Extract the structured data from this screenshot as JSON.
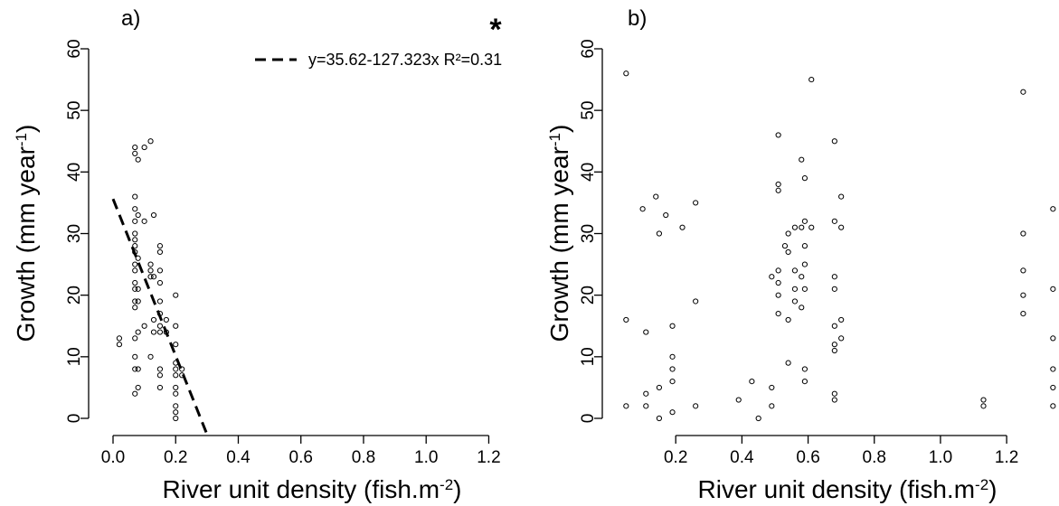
{
  "chart_data": [
    {
      "type": "scatter",
      "panel_label": "a)",
      "significance": "*",
      "xlabel": "River unit density (fish.m",
      "xlabel_sup": "-2",
      "xlabel_end": ")",
      "ylabel": "Growth (mm year",
      "ylabel_sup": "-1",
      "ylabel_end": ")",
      "xlim": [
        0,
        1.32
      ],
      "ylim": [
        -2,
        62
      ],
      "xticks": [
        0.0,
        0.2,
        0.4,
        0.6,
        0.8,
        1.0,
        1.2
      ],
      "xtick_labels": [
        "0.0",
        "0.2",
        "0.4",
        "0.6",
        "0.8",
        "1.0",
        "1.2"
      ],
      "yticks": [
        0,
        10,
        20,
        30,
        40,
        50,
        60
      ],
      "ytick_labels": [
        "0",
        "10",
        "20",
        "30",
        "40",
        "50",
        "60"
      ],
      "legend": {
        "label": "y=35.62-127.323x R²=0.31",
        "placement": "top-right"
      },
      "fit": {
        "intercept": 35.62,
        "slope": -127.323,
        "x_range": [
          0.0,
          0.3
        ]
      },
      "points": [
        [
          0.02,
          13
        ],
        [
          0.02,
          12
        ],
        [
          0.07,
          44
        ],
        [
          0.07,
          43
        ],
        [
          0.07,
          36
        ],
        [
          0.07,
          34
        ],
        [
          0.07,
          32
        ],
        [
          0.07,
          30
        ],
        [
          0.07,
          29
        ],
        [
          0.07,
          28
        ],
        [
          0.07,
          27
        ],
        [
          0.07,
          25
        ],
        [
          0.07,
          24
        ],
        [
          0.07,
          22
        ],
        [
          0.07,
          21
        ],
        [
          0.07,
          19
        ],
        [
          0.07,
          18
        ],
        [
          0.07,
          13
        ],
        [
          0.07,
          10
        ],
        [
          0.07,
          8
        ],
        [
          0.07,
          4
        ],
        [
          0.08,
          42
        ],
        [
          0.08,
          33
        ],
        [
          0.08,
          26
        ],
        [
          0.08,
          21
        ],
        [
          0.08,
          19
        ],
        [
          0.08,
          14
        ],
        [
          0.08,
          8
        ],
        [
          0.08,
          5
        ],
        [
          0.1,
          44
        ],
        [
          0.1,
          32
        ],
        [
          0.1,
          15
        ],
        [
          0.12,
          45
        ],
        [
          0.12,
          25
        ],
        [
          0.12,
          24
        ],
        [
          0.12,
          23
        ],
        [
          0.12,
          10
        ],
        [
          0.13,
          33
        ],
        [
          0.13,
          23
        ],
        [
          0.13,
          16
        ],
        [
          0.13,
          14
        ],
        [
          0.15,
          28
        ],
        [
          0.15,
          27
        ],
        [
          0.15,
          24
        ],
        [
          0.15,
          22
        ],
        [
          0.15,
          19
        ],
        [
          0.15,
          17
        ],
        [
          0.15,
          15
        ],
        [
          0.15,
          14
        ],
        [
          0.15,
          8
        ],
        [
          0.15,
          7
        ],
        [
          0.15,
          5
        ],
        [
          0.17,
          16
        ],
        [
          0.17,
          14
        ],
        [
          0.2,
          20
        ],
        [
          0.2,
          15
        ],
        [
          0.2,
          12
        ],
        [
          0.2,
          9
        ],
        [
          0.2,
          8
        ],
        [
          0.2,
          7
        ],
        [
          0.2,
          5
        ],
        [
          0.2,
          4
        ],
        [
          0.2,
          2
        ],
        [
          0.2,
          1
        ],
        [
          0.2,
          0
        ],
        [
          0.22,
          8
        ],
        [
          0.22,
          7
        ]
      ]
    },
    {
      "type": "scatter",
      "panel_label": "b)",
      "xlabel": "River unit density (fish.m",
      "xlabel_sup": "-2",
      "xlabel_end": ")",
      "ylabel": "Growth (mm year",
      "ylabel_sup": "-1",
      "ylabel_end": ")",
      "xlim": [
        0.03,
        1.35
      ],
      "ylim": [
        -2,
        62
      ],
      "xticks": [
        0.2,
        0.4,
        0.6,
        0.8,
        1.0,
        1.2
      ],
      "xtick_labels": [
        "0.2",
        "0.4",
        "0.6",
        "0.8",
        "1.0",
        "1.2"
      ],
      "yticks": [
        0,
        10,
        20,
        30,
        40,
        50,
        60
      ],
      "ytick_labels": [
        "0",
        "10",
        "20",
        "30",
        "40",
        "50",
        "60"
      ],
      "points": [
        [
          0.05,
          56
        ],
        [
          0.05,
          16
        ],
        [
          0.05,
          2
        ],
        [
          0.1,
          34
        ],
        [
          0.11,
          14
        ],
        [
          0.11,
          4
        ],
        [
          0.11,
          2
        ],
        [
          0.14,
          36
        ],
        [
          0.15,
          30
        ],
        [
          0.15,
          5
        ],
        [
          0.15,
          0
        ],
        [
          0.17,
          33
        ],
        [
          0.19,
          15
        ],
        [
          0.19,
          10
        ],
        [
          0.19,
          8
        ],
        [
          0.19,
          6
        ],
        [
          0.19,
          1
        ],
        [
          0.22,
          31
        ],
        [
          0.26,
          35
        ],
        [
          0.26,
          19
        ],
        [
          0.26,
          2
        ],
        [
          0.39,
          3
        ],
        [
          0.43,
          6
        ],
        [
          0.45,
          0
        ],
        [
          0.49,
          23
        ],
        [
          0.49,
          5
        ],
        [
          0.49,
          2
        ],
        [
          0.51,
          46
        ],
        [
          0.51,
          38
        ],
        [
          0.51,
          37
        ],
        [
          0.51,
          24
        ],
        [
          0.51,
          22
        ],
        [
          0.51,
          20
        ],
        [
          0.51,
          17
        ],
        [
          0.53,
          28
        ],
        [
          0.54,
          30
        ],
        [
          0.54,
          27
        ],
        [
          0.54,
          16
        ],
        [
          0.54,
          9
        ],
        [
          0.56,
          31
        ],
        [
          0.56,
          24
        ],
        [
          0.56,
          21
        ],
        [
          0.56,
          19
        ],
        [
          0.58,
          42
        ],
        [
          0.58,
          31
        ],
        [
          0.58,
          23
        ],
        [
          0.58,
          18
        ],
        [
          0.59,
          39
        ],
        [
          0.59,
          32
        ],
        [
          0.59,
          28
        ],
        [
          0.59,
          25
        ],
        [
          0.59,
          21
        ],
        [
          0.59,
          8
        ],
        [
          0.59,
          6
        ],
        [
          0.61,
          55
        ],
        [
          0.61,
          31
        ],
        [
          0.68,
          45
        ],
        [
          0.68,
          32
        ],
        [
          0.68,
          23
        ],
        [
          0.68,
          21
        ],
        [
          0.68,
          15
        ],
        [
          0.68,
          12
        ],
        [
          0.68,
          11
        ],
        [
          0.68,
          4
        ],
        [
          0.68,
          3
        ],
        [
          0.7,
          36
        ],
        [
          0.7,
          31
        ],
        [
          0.7,
          16
        ],
        [
          0.7,
          13
        ],
        [
          1.13,
          3
        ],
        [
          1.13,
          2
        ],
        [
          1.25,
          53
        ],
        [
          1.25,
          30
        ],
        [
          1.25,
          24
        ],
        [
          1.25,
          20
        ],
        [
          1.25,
          17
        ],
        [
          1.34,
          34
        ],
        [
          1.34,
          21
        ],
        [
          1.34,
          13
        ],
        [
          1.34,
          8
        ],
        [
          1.34,
          5
        ],
        [
          1.34,
          2
        ]
      ]
    }
  ]
}
